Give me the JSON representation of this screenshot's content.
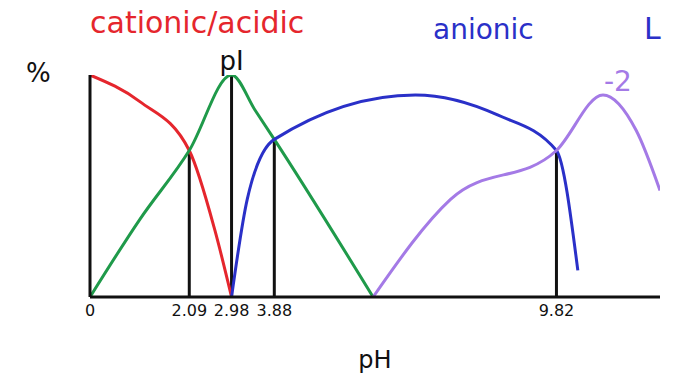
{
  "chart_data": {
    "type": "line",
    "xlabel": "pH",
    "ylabel": "%",
    "xlim": [
      0,
      12
    ],
    "xticks": [
      0,
      2.09,
      2.98,
      3.88,
      9.82
    ],
    "ylim": [
      0,
      100
    ],
    "yticks": [],
    "tick_labels": "x",
    "grid": false,
    "series": [
      {
        "color": "#e5262d",
        "x": [
          0,
          1.05,
          2.09,
          2.63,
          2.98
        ],
        "values": [
          100,
          88,
          66,
          30,
          0
        ]
      },
      {
        "color": "#1f9a4a",
        "x": [
          0,
          1.05,
          2.09,
          2.98,
          3.48,
          3.88,
          5.96
        ],
        "values": [
          0,
          35,
          66,
          100,
          84,
          71,
          0
        ]
      },
      {
        "color": "#2a30c8",
        "x": [
          2.98,
          3.31,
          3.88,
          6.85,
          8.58,
          9.82,
          10.27
        ],
        "values": [
          0,
          44,
          71,
          91,
          82,
          66,
          12
        ]
      },
      {
        "color": "#a47ae6",
        "x": [
          5.96,
          7.59,
          9.82,
          10.8,
          11.5,
          12
        ],
        "values": [
          0,
          44,
          66,
          91,
          75,
          48
        ]
      }
    ],
    "vlines": [
      {
        "x": 2.09,
        "y": 66
      },
      {
        "x": 2.98,
        "y": 100,
        "label": "pI"
      },
      {
        "x": 3.88,
        "y": 71
      },
      {
        "x": 9.82,
        "y": 66
      }
    ],
    "annotations": [
      {
        "text": "cationic/acidic",
        "color": "#e5262d"
      },
      {
        "text": "anionic",
        "color": "#2a30c8"
      },
      {
        "text": "L",
        "color": "#2a30c8"
      },
      {
        "text": "-2",
        "color": "#a47ae6"
      }
    ]
  }
}
